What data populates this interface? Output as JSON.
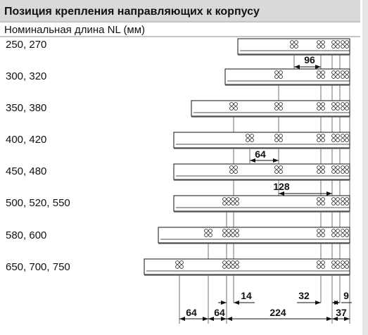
{
  "header": {
    "title": "Позиция крепления направляющих к корпусу",
    "subtitle": "Номинальная длина NL (мм)"
  },
  "rows": [
    "250, 270",
    "300, 320",
    "350, 380",
    "400, 420",
    "450, 480",
    "500, 520, 550",
    "580, 600",
    "650, 700, 750"
  ],
  "dimensions": [
    96,
    64,
    128,
    14,
    32,
    9,
    64,
    64,
    224,
    37
  ]
}
